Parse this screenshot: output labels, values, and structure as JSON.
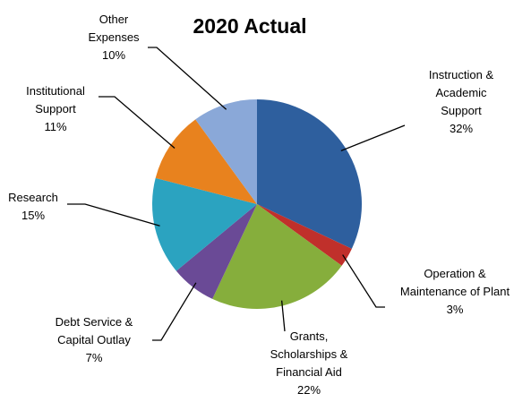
{
  "chart_data": {
    "type": "pie",
    "title": "2020 Actual",
    "slices": [
      {
        "label": "Instruction & Academic Support",
        "lines": [
          "Instruction &",
          "Academic",
          "Support"
        ],
        "value": 32,
        "pct": "32%",
        "color": "#2E5F9E"
      },
      {
        "label": "Operation & Maintenance of Plant",
        "lines": [
          "Operation &",
          "Maintenance of Plant"
        ],
        "value": 3,
        "pct": "3%",
        "color": "#C0302B"
      },
      {
        "label": "Grants, Scholarships & Financial Aid",
        "lines": [
          "Grants,",
          "Scholarships &",
          "Financial Aid"
        ],
        "value": 22,
        "pct": "22%",
        "color": "#86AE3C"
      },
      {
        "label": "Debt Service & Capital Outlay",
        "lines": [
          "Debt Service &",
          "Capital Outlay"
        ],
        "value": 7,
        "pct": "7%",
        "color": "#6A4A96"
      },
      {
        "label": "Research",
        "lines": [
          "Research"
        ],
        "value": 15,
        "pct": "15%",
        "color": "#2BA3C0"
      },
      {
        "label": "Institutional Support",
        "lines": [
          "Institutional",
          "Support"
        ],
        "value": 11,
        "pct": "11%",
        "color": "#E8821E"
      },
      {
        "label": "Other Expenses",
        "lines": [
          "Other",
          "Expenses"
        ],
        "value": 10,
        "pct": "10%",
        "color": "#8AA8D8"
      }
    ],
    "legend": "none",
    "label_style": "outside labels with leader lines"
  }
}
